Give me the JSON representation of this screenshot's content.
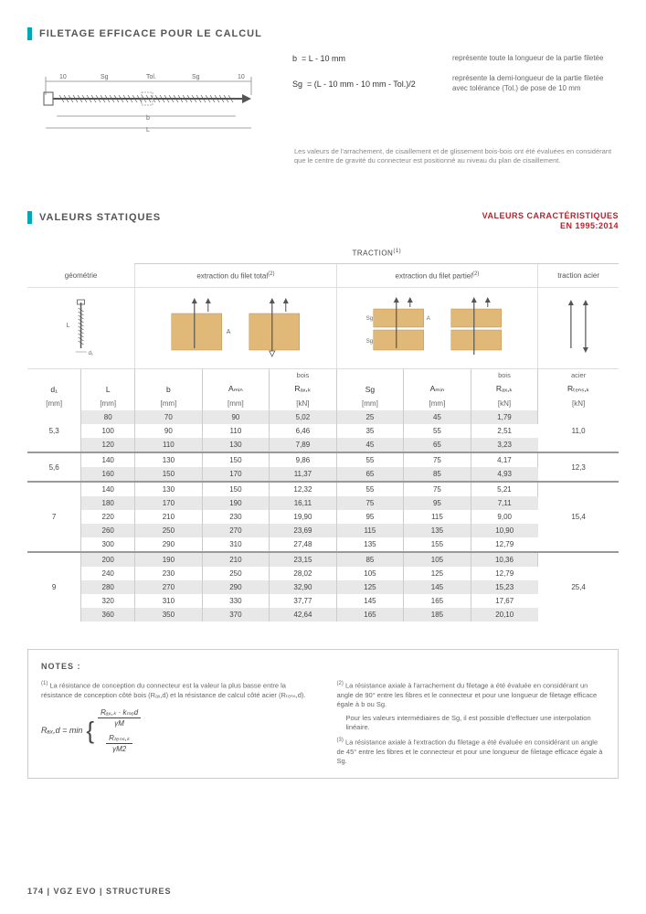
{
  "section1": {
    "title": "FILETAGE EFFICACE POUR LE CALCUL",
    "def1_sym": "b",
    "def1_formula": "= L - 10 mm",
    "def1_desc": "représente toute la longueur de la partie filetée",
    "def2_sym": "Sg",
    "def2_formula": "= (L - 10 mm - 10 mm - Tol.)/2",
    "def2_desc": "représente la demi-longueur de la partie filetée avec tolérance (Tol.) de pose de 10 mm",
    "fineprint": "Les valeurs de l'arrachement, de cisaillement et de glissement bois-bois ont été évaluées en considérant que le centre de gravité du connecteur est positionné au niveau du plan de cisaillement."
  },
  "section2": {
    "title": "VALEURS STATIQUES",
    "caption1": "VALEURS CARACTÉRISTIQUES",
    "caption2": "EN 1995:2014"
  },
  "table": {
    "traction_label": "TRACTION",
    "groups": [
      "géométrie",
      "extraction du filet total",
      "extraction du filet partiel",
      "traction acier"
    ],
    "subheads": [
      "",
      "",
      "",
      "",
      "bois",
      "",
      "",
      "bois",
      "acier"
    ],
    "headers": [
      "d₁",
      "L",
      "b",
      "Aₘᵢₙ",
      "Rₐₓ,ₖ",
      "Sg",
      "Aₘᵢₙ",
      "Rₐₓ,ₖ",
      "Rₜₑₙₛ,ₖ"
    ],
    "units": [
      "[mm]",
      "[mm]",
      "[mm]",
      "[mm]",
      "[kN]",
      "[mm]",
      "[mm]",
      "[kN]",
      "[kN]"
    ],
    "blocks": [
      {
        "d1": "5,3",
        "rtens": "11,0",
        "rows": [
          {
            "alt": true,
            "v": [
              "80",
              "70",
              "90",
              "5,02",
              "25",
              "45",
              "1,79"
            ]
          },
          {
            "alt": false,
            "v": [
              "100",
              "90",
              "110",
              "6,46",
              "35",
              "55",
              "2,51"
            ]
          },
          {
            "alt": true,
            "v": [
              "120",
              "110",
              "130",
              "7,89",
              "45",
              "65",
              "3,23"
            ]
          }
        ]
      },
      {
        "d1": "5,6",
        "rtens": "12,3",
        "rows": [
          {
            "alt": false,
            "v": [
              "140",
              "130",
              "150",
              "9,86",
              "55",
              "75",
              "4,17"
            ]
          },
          {
            "alt": true,
            "v": [
              "160",
              "150",
              "170",
              "11,37",
              "65",
              "85",
              "4,93"
            ]
          }
        ]
      },
      {
        "d1": "7",
        "rtens": "15,4",
        "rows": [
          {
            "alt": false,
            "v": [
              "140",
              "130",
              "150",
              "12,32",
              "55",
              "75",
              "5,21"
            ]
          },
          {
            "alt": true,
            "v": [
              "180",
              "170",
              "190",
              "16,11",
              "75",
              "95",
              "7,11"
            ]
          },
          {
            "alt": false,
            "v": [
              "220",
              "210",
              "230",
              "19,90",
              "95",
              "115",
              "9,00"
            ]
          },
          {
            "alt": true,
            "v": [
              "260",
              "250",
              "270",
              "23,69",
              "115",
              "135",
              "10,90"
            ]
          },
          {
            "alt": false,
            "v": [
              "300",
              "290",
              "310",
              "27,48",
              "135",
              "155",
              "12,79"
            ]
          }
        ]
      },
      {
        "d1": "9",
        "rtens": "25,4",
        "rows": [
          {
            "alt": true,
            "v": [
              "200",
              "190",
              "210",
              "23,15",
              "85",
              "105",
              "10,36"
            ]
          },
          {
            "alt": false,
            "v": [
              "240",
              "230",
              "250",
              "28,02",
              "105",
              "125",
              "12,79"
            ]
          },
          {
            "alt": true,
            "v": [
              "280",
              "270",
              "290",
              "32,90",
              "125",
              "145",
              "15,23"
            ]
          },
          {
            "alt": false,
            "v": [
              "320",
              "310",
              "330",
              "37,77",
              "145",
              "165",
              "17,67"
            ]
          },
          {
            "alt": true,
            "v": [
              "360",
              "350",
              "370",
              "42,64",
              "165",
              "185",
              "20,10"
            ]
          }
        ]
      }
    ]
  },
  "notes": {
    "title": "NOTES :",
    "n1": "La résistance de conception du connecteur est la valeur la plus basse entre la résistance de conception côté bois (Rₐₓ,d) et la résistance de calcul côté acier (Rₜₑₙₛ,d).",
    "n2": "La résistance axiale à l'arrachement du filetage a été évaluée en considérant un angle de 90° entre les fibres et le connecteur et pour une longueur de filetage efficace égale à b ou Sg.",
    "n2b": "Pour les valeurs intermédiaires de Sg, il est possible d'effectuer une interpolation linéaire.",
    "n3": "La résistance axiale à l'extraction du filetage a été évaluée en considérant un angle de 45° entre les fibres et le connecteur et pour une longueur de filetage efficace égale à Sg.",
    "formula_lhs": "Rₐₓ,d = min",
    "frac1_num": "Rₐₓ,ₖ · kₘₒd",
    "frac1_den": "γM",
    "frac2_num": "Rₜₑₙₛ,ₖ",
    "frac2_den": "γM2"
  },
  "footer": "174  |  VGZ EVO  |  STRUCTURES",
  "colors": {
    "accent": "#00a8b5",
    "red": "#b8222b",
    "wood": "#e0b878"
  }
}
